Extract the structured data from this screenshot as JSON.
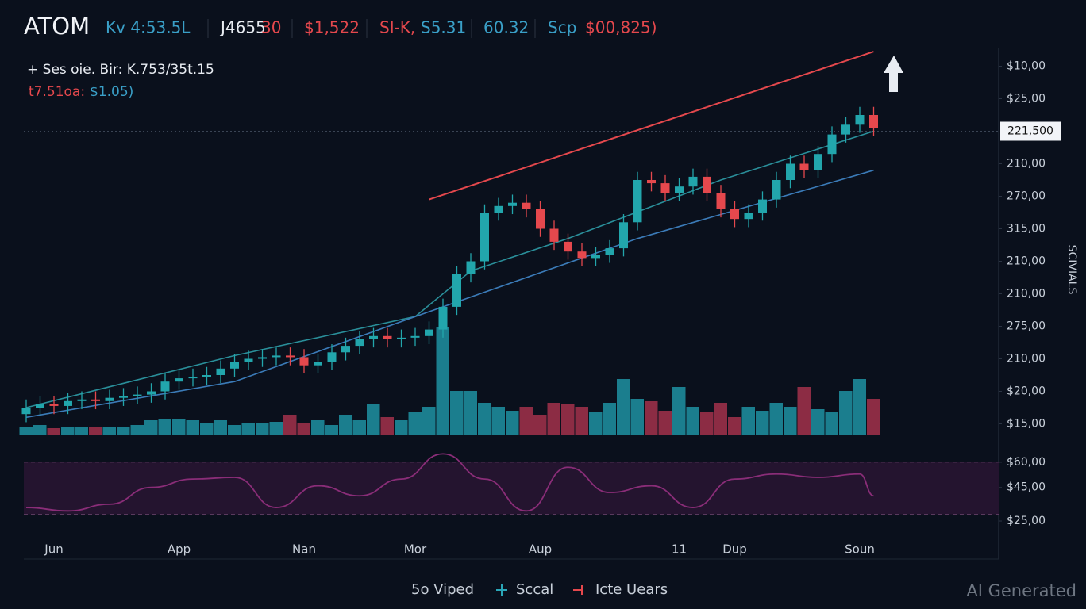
{
  "chart_data": {
    "type": "candlestick",
    "title": "ATOM",
    "header_stats": [
      {
        "text": "Kv 4:53.5L",
        "color": "#3aa0c8"
      },
      {
        "text": "J4655",
        "color": "#e8ecf2"
      },
      {
        "text": "30",
        "color": "#e5484d"
      },
      {
        "text": "$1,522",
        "color": "#e5484d"
      },
      {
        "text": "SI-K,",
        "color": "#e5484d"
      },
      {
        "text": "S5.31",
        "color": "#3aa0c8"
      },
      {
        "text": "60.32",
        "color": "#3aa0c8"
      },
      {
        "text": "Scp",
        "color": "#3aa0c8"
      },
      {
        "text": "$00,825)",
        "color": "#e5484d"
      }
    ],
    "info_line": "+ Ses oie. Bir: K.753/35t.15",
    "info_line_2": [
      {
        "text": "t7.51oa:",
        "color": "#e5484d"
      },
      {
        "text": "$1.05)",
        "color": "#3aa0c8"
      }
    ],
    "categories": [
      null,
      null,
      "Jun",
      null,
      null,
      null,
      null,
      null,
      null,
      null,
      null,
      "App",
      null,
      null,
      null,
      null,
      null,
      null,
      null,
      null,
      "Nan",
      null,
      null,
      null,
      null,
      null,
      null,
      null,
      "Mor",
      null,
      null,
      null,
      null,
      null,
      null,
      null,
      null,
      "Aup",
      null,
      null,
      null,
      null,
      null,
      null,
      null,
      null,
      null,
      "11",
      null,
      null,
      null,
      "Dup",
      null,
      null,
      null,
      null,
      null,
      null,
      null,
      null,
      "Soun",
      null
    ],
    "open": [
      1.3,
      1.5,
      1.6,
      1.55,
      1.7,
      1.75,
      1.7,
      1.8,
      1.85,
      1.9,
      2.0,
      2.3,
      2.4,
      2.45,
      2.5,
      2.7,
      2.9,
      3.0,
      3.05,
      3.1,
      3.05,
      2.8,
      2.9,
      3.2,
      3.4,
      3.6,
      3.7,
      3.6,
      3.65,
      3.7,
      3.9,
      4.6,
      5.6,
      6.0,
      7.5,
      7.7,
      7.8,
      7.6,
      7.0,
      6.6,
      6.3,
      6.1,
      6.2,
      6.4,
      7.2,
      8.5,
      8.4,
      8.1,
      8.3,
      8.6,
      8.1,
      7.6,
      7.3,
      7.5,
      7.9,
      8.5,
      9.0,
      8.8,
      9.3,
      9.9,
      10.2,
      10.5
    ],
    "high": [
      1.75,
      1.85,
      1.85,
      1.95,
      2.0,
      2.0,
      2.05,
      2.1,
      2.15,
      2.25,
      2.55,
      2.65,
      2.7,
      2.75,
      2.95,
      3.15,
      3.25,
      3.3,
      3.35,
      3.35,
      3.3,
      3.15,
      3.45,
      3.65,
      3.85,
      3.95,
      3.95,
      3.9,
      3.95,
      4.15,
      4.85,
      5.85,
      6.25,
      7.75,
      7.95,
      8.05,
      8.05,
      7.85,
      7.25,
      6.85,
      6.55,
      6.45,
      6.65,
      7.45,
      8.75,
      8.75,
      8.65,
      8.55,
      8.85,
      8.85,
      8.35,
      7.85,
      7.75,
      8.15,
      8.75,
      9.25,
      9.25,
      9.55,
      10.15,
      10.45,
      10.75,
      10.75
    ],
    "low": [
      1.05,
      1.25,
      1.3,
      1.3,
      1.45,
      1.45,
      1.45,
      1.55,
      1.6,
      1.65,
      1.75,
      2.05,
      2.15,
      2.2,
      2.25,
      2.45,
      2.65,
      2.75,
      2.8,
      2.8,
      2.55,
      2.55,
      2.65,
      2.95,
      3.15,
      3.35,
      3.35,
      3.35,
      3.4,
      3.45,
      3.65,
      4.35,
      5.35,
      5.75,
      7.25,
      7.45,
      7.35,
      6.75,
      6.35,
      6.05,
      5.85,
      5.85,
      5.95,
      6.15,
      6.95,
      8.15,
      7.85,
      7.85,
      8.05,
      7.85,
      7.35,
      7.05,
      7.05,
      7.25,
      7.65,
      8.25,
      8.55,
      8.55,
      9.05,
      9.65,
      9.95,
      9.85
    ],
    "close": [
      1.5,
      1.6,
      1.55,
      1.7,
      1.75,
      1.7,
      1.8,
      1.85,
      1.9,
      2.0,
      2.3,
      2.4,
      2.45,
      2.5,
      2.7,
      2.9,
      3.0,
      3.05,
      3.1,
      3.05,
      2.8,
      2.9,
      3.2,
      3.4,
      3.6,
      3.7,
      3.6,
      3.65,
      3.7,
      3.9,
      4.6,
      5.6,
      6.0,
      7.5,
      7.7,
      7.8,
      7.6,
      7.0,
      6.6,
      6.3,
      6.1,
      6.2,
      6.4,
      7.2,
      8.5,
      8.4,
      8.1,
      8.3,
      8.6,
      8.1,
      7.6,
      7.3,
      7.5,
      7.9,
      8.5,
      9.0,
      8.8,
      9.3,
      9.9,
      10.2,
      10.5,
      10.1
    ],
    "up_color": "#22a6ac",
    "down_color": "#e5484d",
    "ylim": [
      0.5,
      12.5
    ],
    "yticks": [
      {
        "value": 12,
        "label": "$10,00"
      },
      {
        "value": 11,
        "label": "$25,00"
      },
      {
        "value": 10,
        "label": "221,500",
        "highlight": true
      },
      {
        "value": 9,
        "label": "210,00"
      },
      {
        "value": 8,
        "label": "270,00"
      },
      {
        "value": 7,
        "label": "315,00"
      },
      {
        "value": 6,
        "label": "210,00"
      },
      {
        "value": 5,
        "label": "210,00"
      },
      {
        "value": 4,
        "label": "275,00"
      },
      {
        "value": 3,
        "label": "210,00"
      },
      {
        "value": 2,
        "label": "$20,00"
      },
      {
        "value": 1,
        "label": "$15,00"
      }
    ],
    "volume": {
      "values": [
        10,
        12,
        8,
        10,
        10,
        10,
        9,
        10,
        12,
        18,
        20,
        20,
        18,
        15,
        18,
        12,
        14,
        15,
        16,
        25,
        14,
        18,
        12,
        25,
        18,
        38,
        22,
        18,
        28,
        35,
        135,
        55,
        55,
        40,
        35,
        30,
        35,
        25,
        40,
        38,
        35,
        28,
        40,
        70,
        45,
        42,
        30,
        60,
        35,
        28,
        40,
        22,
        35,
        30,
        40,
        35,
        60,
        32,
        28,
        55,
        70,
        45
      ],
      "up_color": "#1b7e8e",
      "down_color": "#8c2c44"
    },
    "moving_averages": [
      {
        "color": "#2a8f9a",
        "x": [
          0,
          15,
          28,
          32,
          39,
          50,
          61
        ],
        "values": [
          1.5,
          3.1,
          4.3,
          5.7,
          6.7,
          8.5,
          10.0
        ]
      },
      {
        "color": "#3b7bb8",
        "x": [
          0,
          15,
          28,
          44,
          61
        ],
        "values": [
          1.2,
          2.3,
          4.3,
          6.7,
          8.8
        ]
      }
    ],
    "trendline": {
      "color": "#e5484d",
      "x": [
        29,
        61
      ],
      "values": [
        7.9,
        12.45
      ]
    },
    "rsi": {
      "color": "#8a2d78",
      "fill": "#24142f",
      "ylim": [
        20,
        68
      ],
      "levels": [
        60,
        29
      ],
      "yticks": [
        {
          "value": 60,
          "label": "$60,00"
        },
        {
          "value": 45,
          "label": "$45,00"
        },
        {
          "value": 25,
          "label": "$25,00"
        }
      ],
      "x": [
        0,
        3,
        6,
        9,
        12,
        15,
        18,
        21,
        24,
        27,
        30,
        33,
        36,
        39,
        42,
        45,
        48,
        51,
        54,
        57,
        60,
        61
      ],
      "values": [
        33,
        31,
        35,
        45,
        50,
        51,
        33,
        46,
        40,
        50,
        65,
        50,
        31,
        57,
        42,
        46,
        33,
        50,
        53,
        51,
        53,
        40
      ]
    },
    "legend": [
      {
        "text": "5o Viped",
        "color": "#2aa7b8"
      },
      {
        "text": "Sccal",
        "color": "#2aa7b8"
      },
      {
        "text": "Icte Uears",
        "color": "#e5484d"
      }
    ],
    "axis_label": "SCIVIALS",
    "watermark": "AI Generated"
  }
}
